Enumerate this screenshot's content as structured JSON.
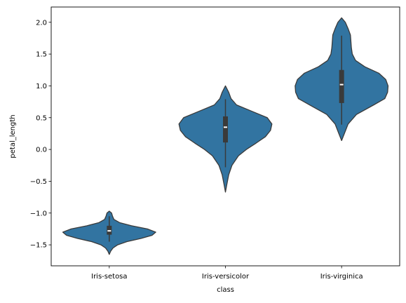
{
  "chart_data": {
    "type": "violin",
    "xlabel": "class",
    "ylabel": "petal_length",
    "ylim": [
      -1.83,
      2.24
    ],
    "yticks": [
      -1.5,
      -1.0,
      -0.5,
      0.0,
      0.5,
      1.0,
      1.5,
      2.0
    ],
    "ytick_labels": [
      "−1.5",
      "−1.0",
      "−0.5",
      "0.0",
      "0.5",
      "1.0",
      "1.5",
      "2.0"
    ],
    "grid": false,
    "color": "#3274a1",
    "edge_color": "#3a3a3a",
    "categories": [
      "Iris-setosa",
      "Iris-versicolor",
      "Iris-virginica"
    ],
    "violins": [
      {
        "category": "Iris-setosa",
        "min": -1.45,
        "q1": -1.34,
        "median": -1.28,
        "q3": -1.2,
        "max": -1.05,
        "density": [
          [
            -1.65,
            0.0
          ],
          [
            -1.6,
            0.03
          ],
          [
            -1.55,
            0.08
          ],
          [
            -1.5,
            0.18
          ],
          [
            -1.45,
            0.38
          ],
          [
            -1.4,
            0.68
          ],
          [
            -1.35,
            0.92
          ],
          [
            -1.3,
            1.0
          ],
          [
            -1.25,
            0.82
          ],
          [
            -1.2,
            0.48
          ],
          [
            -1.15,
            0.22
          ],
          [
            -1.1,
            0.1
          ],
          [
            -1.05,
            0.07
          ],
          [
            -1.0,
            0.05
          ],
          [
            -0.97,
            0.0
          ]
        ]
      },
      {
        "category": "Iris-versicolor",
        "min": -0.28,
        "q1": 0.11,
        "median": 0.35,
        "q3": 0.52,
        "max": 0.79,
        "density": [
          [
            -0.67,
            0.0
          ],
          [
            -0.55,
            0.03
          ],
          [
            -0.4,
            0.07
          ],
          [
            -0.25,
            0.14
          ],
          [
            -0.1,
            0.28
          ],
          [
            0.0,
            0.45
          ],
          [
            0.1,
            0.66
          ],
          [
            0.2,
            0.86
          ],
          [
            0.3,
            0.97
          ],
          [
            0.4,
            1.0
          ],
          [
            0.5,
            0.9
          ],
          [
            0.6,
            0.57
          ],
          [
            0.7,
            0.24
          ],
          [
            0.8,
            0.12
          ],
          [
            0.9,
            0.07
          ],
          [
            1.0,
            0.0
          ]
        ]
      },
      {
        "category": "Iris-virginica",
        "min": 0.39,
        "q1": 0.73,
        "median": 1.02,
        "q3": 1.25,
        "max": 1.79,
        "density": [
          [
            0.14,
            0.0
          ],
          [
            0.25,
            0.06
          ],
          [
            0.4,
            0.14
          ],
          [
            0.55,
            0.32
          ],
          [
            0.7,
            0.69
          ],
          [
            0.8,
            0.93
          ],
          [
            0.9,
            0.99
          ],
          [
            1.0,
            1.0
          ],
          [
            1.1,
            0.95
          ],
          [
            1.2,
            0.8
          ],
          [
            1.3,
            0.5
          ],
          [
            1.4,
            0.3
          ],
          [
            1.5,
            0.23
          ],
          [
            1.6,
            0.21
          ],
          [
            1.7,
            0.2
          ],
          [
            1.8,
            0.19
          ],
          [
            1.9,
            0.14
          ],
          [
            2.0,
            0.08
          ],
          [
            2.07,
            0.0
          ]
        ]
      }
    ]
  }
}
